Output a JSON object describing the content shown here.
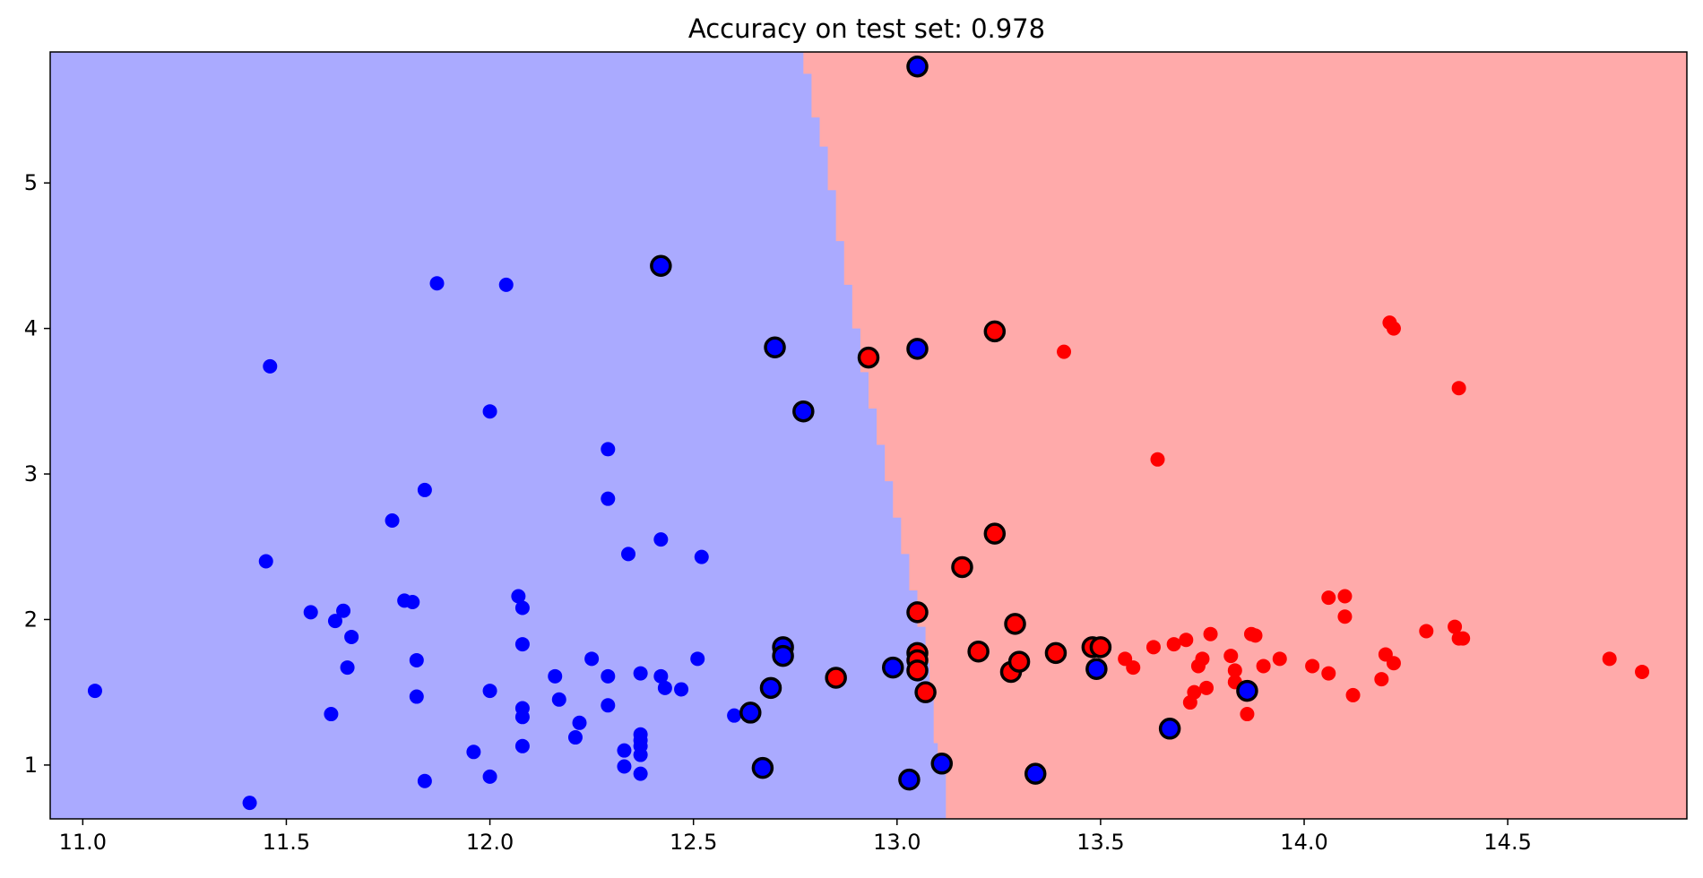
{
  "chart_data": {
    "type": "scatter",
    "title": "Accuracy on test set: 0.978",
    "xlabel": "",
    "ylabel": "",
    "xlim": [
      10.92,
      14.94
    ],
    "ylim": [
      0.63,
      5.9
    ],
    "grid": false,
    "x_ticks": [
      11.0,
      11.5,
      12.0,
      12.5,
      13.0,
      13.5,
      14.0,
      14.5
    ],
    "x_tick_labels": [
      "11.0",
      "11.5",
      "12.0",
      "12.5",
      "13.0",
      "13.5",
      "14.0",
      "14.5"
    ],
    "y_ticks": [
      1,
      2,
      3,
      4,
      5
    ],
    "y_tick_labels": [
      "1",
      "2",
      "3",
      "4",
      "5"
    ],
    "colors": {
      "class_0_region": "#aaaaff",
      "class_1_region": "#ffaaaa",
      "class_0_point": "#0000ff",
      "class_1_point": "#ff0000",
      "test_outline": "#000000"
    },
    "decision_boundary": [
      [
        5.9,
        12.77
      ],
      [
        5.75,
        12.79
      ],
      [
        5.45,
        12.81
      ],
      [
        5.25,
        12.83
      ],
      [
        4.95,
        12.85
      ],
      [
        4.6,
        12.87
      ],
      [
        4.3,
        12.89
      ],
      [
        4.0,
        12.91
      ],
      [
        3.7,
        12.93
      ],
      [
        3.45,
        12.95
      ],
      [
        3.2,
        12.97
      ],
      [
        2.95,
        12.99
      ],
      [
        2.7,
        13.01
      ],
      [
        2.45,
        13.03
      ],
      [
        2.2,
        13.05
      ],
      [
        1.95,
        13.07
      ],
      [
        1.7,
        13.08
      ],
      [
        1.45,
        13.09
      ],
      [
        1.15,
        13.1
      ],
      [
        0.95,
        13.12
      ],
      [
        0.63,
        13.13
      ]
    ],
    "series": [
      {
        "class": 0,
        "set": "train",
        "x": [
          11.03,
          11.41,
          11.45,
          11.46,
          11.56,
          11.61,
          11.62,
          11.64,
          11.65,
          11.66,
          11.76,
          11.79,
          11.81,
          11.82,
          11.82,
          11.84,
          11.84,
          11.87,
          11.96,
          12.0,
          12.0,
          12.0,
          12.04,
          12.07,
          12.08,
          12.08,
          12.08,
          12.08,
          12.08,
          12.16,
          12.17,
          12.21,
          12.22,
          12.25,
          12.29,
          12.29,
          12.29,
          12.29,
          12.33,
          12.33,
          12.34,
          12.37,
          12.37,
          12.37,
          12.37,
          12.37,
          12.37,
          12.42,
          12.42,
          12.43,
          12.47,
          12.51,
          12.52,
          12.6
        ],
        "y": [
          1.51,
          0.74,
          2.4,
          3.74,
          2.05,
          1.35,
          1.99,
          2.06,
          1.67,
          1.88,
          2.68,
          2.13,
          2.12,
          1.72,
          1.47,
          2.89,
          0.89,
          4.31,
          1.09,
          3.43,
          1.51,
          0.92,
          4.3,
          2.16,
          2.08,
          1.83,
          1.39,
          1.33,
          1.13,
          1.61,
          1.45,
          1.19,
          1.29,
          1.73,
          3.17,
          2.83,
          1.61,
          1.41,
          1.1,
          0.99,
          2.45,
          1.63,
          1.21,
          1.17,
          1.13,
          1.07,
          0.94,
          2.55,
          1.61,
          1.53,
          1.52,
          1.73,
          2.43,
          1.34
        ]
      },
      {
        "class": 1,
        "set": "train",
        "x": [
          13.41,
          13.56,
          13.58,
          13.63,
          13.64,
          13.68,
          13.71,
          13.72,
          13.73,
          13.74,
          13.75,
          13.76,
          13.77,
          13.82,
          13.83,
          13.83,
          13.86,
          13.87,
          13.88,
          13.9,
          13.94,
          14.02,
          14.06,
          14.06,
          14.1,
          14.1,
          14.12,
          14.19,
          14.2,
          14.21,
          14.22,
          14.22,
          14.3,
          14.37,
          14.38,
          14.38,
          14.39,
          14.75,
          14.83
        ],
        "y": [
          3.84,
          1.73,
          1.67,
          1.81,
          3.1,
          1.83,
          1.86,
          1.43,
          1.5,
          1.68,
          1.73,
          1.53,
          1.9,
          1.75,
          1.65,
          1.57,
          1.35,
          1.9,
          1.89,
          1.68,
          1.73,
          1.68,
          2.15,
          1.63,
          2.16,
          2.02,
          1.48,
          1.59,
          1.76,
          4.04,
          4.0,
          1.7,
          1.92,
          1.95,
          3.59,
          1.87,
          1.87,
          1.73,
          1.64
        ]
      },
      {
        "class": 0,
        "set": "test",
        "x": [
          12.42,
          12.64,
          12.67,
          12.69,
          12.7,
          12.72,
          12.72,
          12.77,
          12.99,
          13.03,
          13.05,
          13.05,
          13.11,
          13.34,
          13.49,
          13.67,
          13.86
        ],
        "y": [
          4.43,
          1.36,
          0.98,
          1.53,
          3.87,
          1.81,
          1.75,
          3.43,
          1.67,
          0.9,
          5.8,
          3.86,
          1.01,
          0.94,
          1.66,
          1.25,
          1.51
        ]
      },
      {
        "class": 1,
        "set": "test",
        "x": [
          12.85,
          12.93,
          13.05,
          13.05,
          13.05,
          13.05,
          13.07,
          13.16,
          13.2,
          13.24,
          13.24,
          13.28,
          13.29,
          13.3,
          13.39,
          13.48,
          13.5
        ],
        "y": [
          1.6,
          3.8,
          2.05,
          1.77,
          1.72,
          1.65,
          1.5,
          2.36,
          1.78,
          2.59,
          3.98,
          1.64,
          1.97,
          1.71,
          1.77,
          1.81,
          1.81
        ]
      }
    ]
  }
}
